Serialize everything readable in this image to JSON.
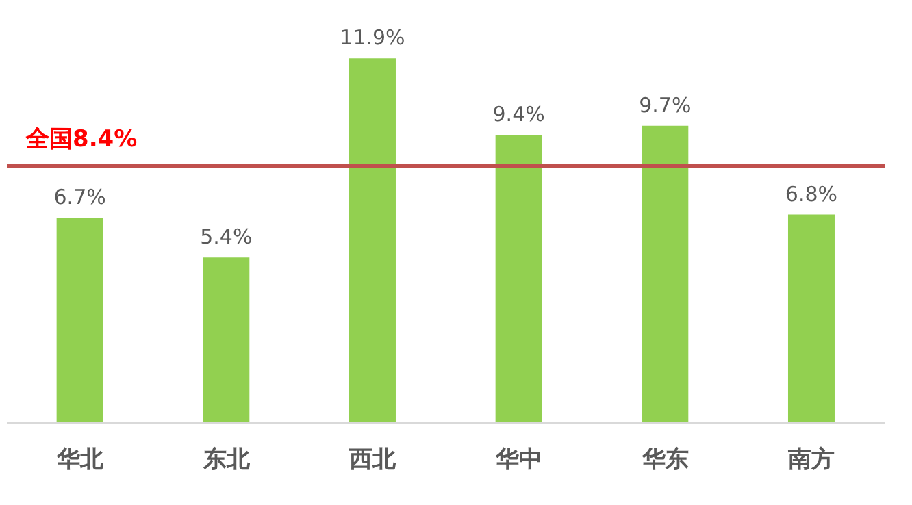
{
  "chart_data": {
    "type": "bar",
    "categories": [
      "华北",
      "东北",
      "西北",
      "华中",
      "华东",
      "南方"
    ],
    "values": [
      6.7,
      5.4,
      11.9,
      9.4,
      9.7,
      6.8
    ],
    "value_labels": [
      "6.7%",
      "5.4%",
      "11.9%",
      "9.4%",
      "9.7%",
      "6.8%"
    ],
    "color": "#92d050",
    "ref_lines": [
      {
        "axis": "y",
        "value": 8.4,
        "label": "全国8.4%",
        "color": "#c0504d"
      }
    ],
    "grid": false
  }
}
